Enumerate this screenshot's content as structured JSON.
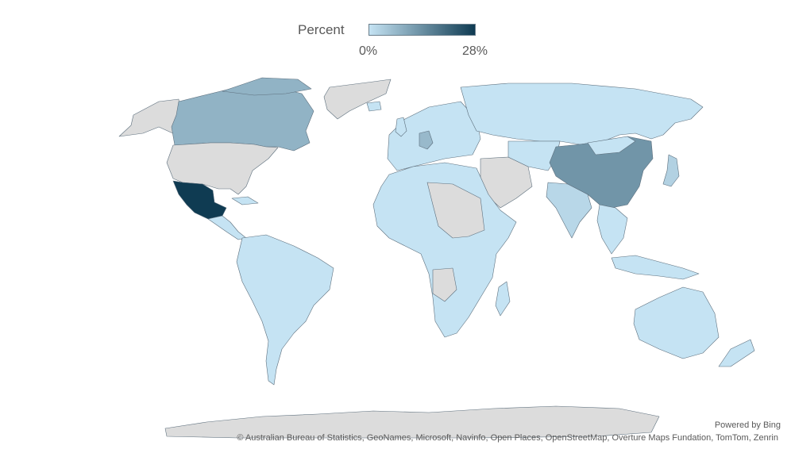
{
  "legend": {
    "title": "Percent",
    "min_label": "0%",
    "max_label": "28%",
    "min_value": 0,
    "max_value": 28,
    "color_low": "#c5e3f3",
    "color_high": "#0f3b52"
  },
  "no_data_color": "#dcdcdc",
  "regions": [
    {
      "name": "Mexico",
      "value": 28
    },
    {
      "name": "China",
      "value": 13
    },
    {
      "name": "Canada",
      "value": 8
    },
    {
      "name": "Germany",
      "value": 7
    },
    {
      "name": "India",
      "value": 2
    },
    {
      "name": "Japan",
      "value": 3
    },
    {
      "name": "United States",
      "value": null
    },
    {
      "name": "Antarctica",
      "value": null
    }
  ],
  "footer": {
    "powered_by": "Powered by Bing",
    "attribution": "© Australian Bureau of Statistics, GeoNames, Microsoft, Navinfo, Open Places, OpenStreetMap, Overture Maps Fundation, TomTom, Zenrin"
  }
}
